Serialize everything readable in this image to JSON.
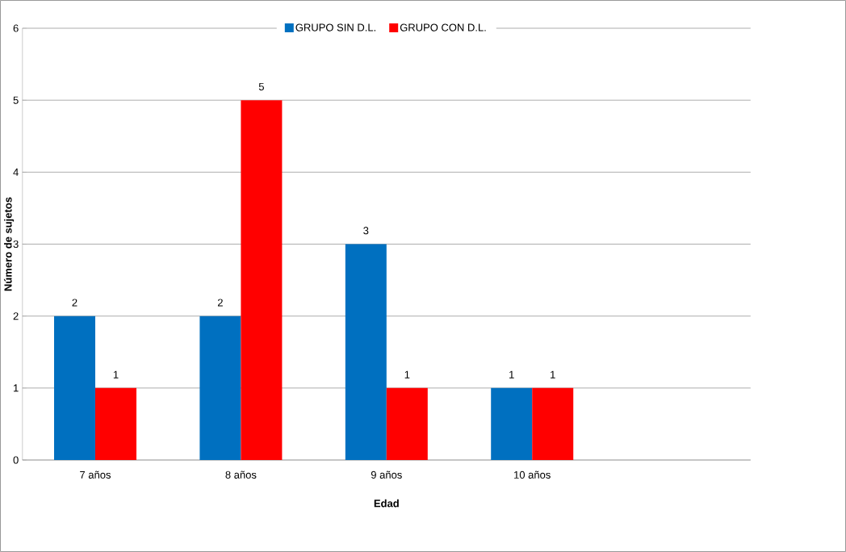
{
  "chart_data": {
    "type": "bar",
    "xlabel": "Edad",
    "ylabel": "Número de sujetos",
    "categories": [
      "7 años",
      "8 años",
      "9 años",
      "10 años",
      null
    ],
    "series": [
      {
        "name": "GRUPO SIN D.L.",
        "color": "#0070c0",
        "values": [
          2,
          2,
          3,
          1,
          null
        ]
      },
      {
        "name": "GRUPO CON D.L.",
        "color": "#ff0000",
        "values": [
          1,
          5,
          1,
          1,
          null
        ]
      }
    ],
    "ylim": [
      0,
      6
    ],
    "yticks": [
      0,
      1,
      2,
      3,
      4,
      5,
      6
    ],
    "grid": "y",
    "legend": "top",
    "data_labels": true
  }
}
